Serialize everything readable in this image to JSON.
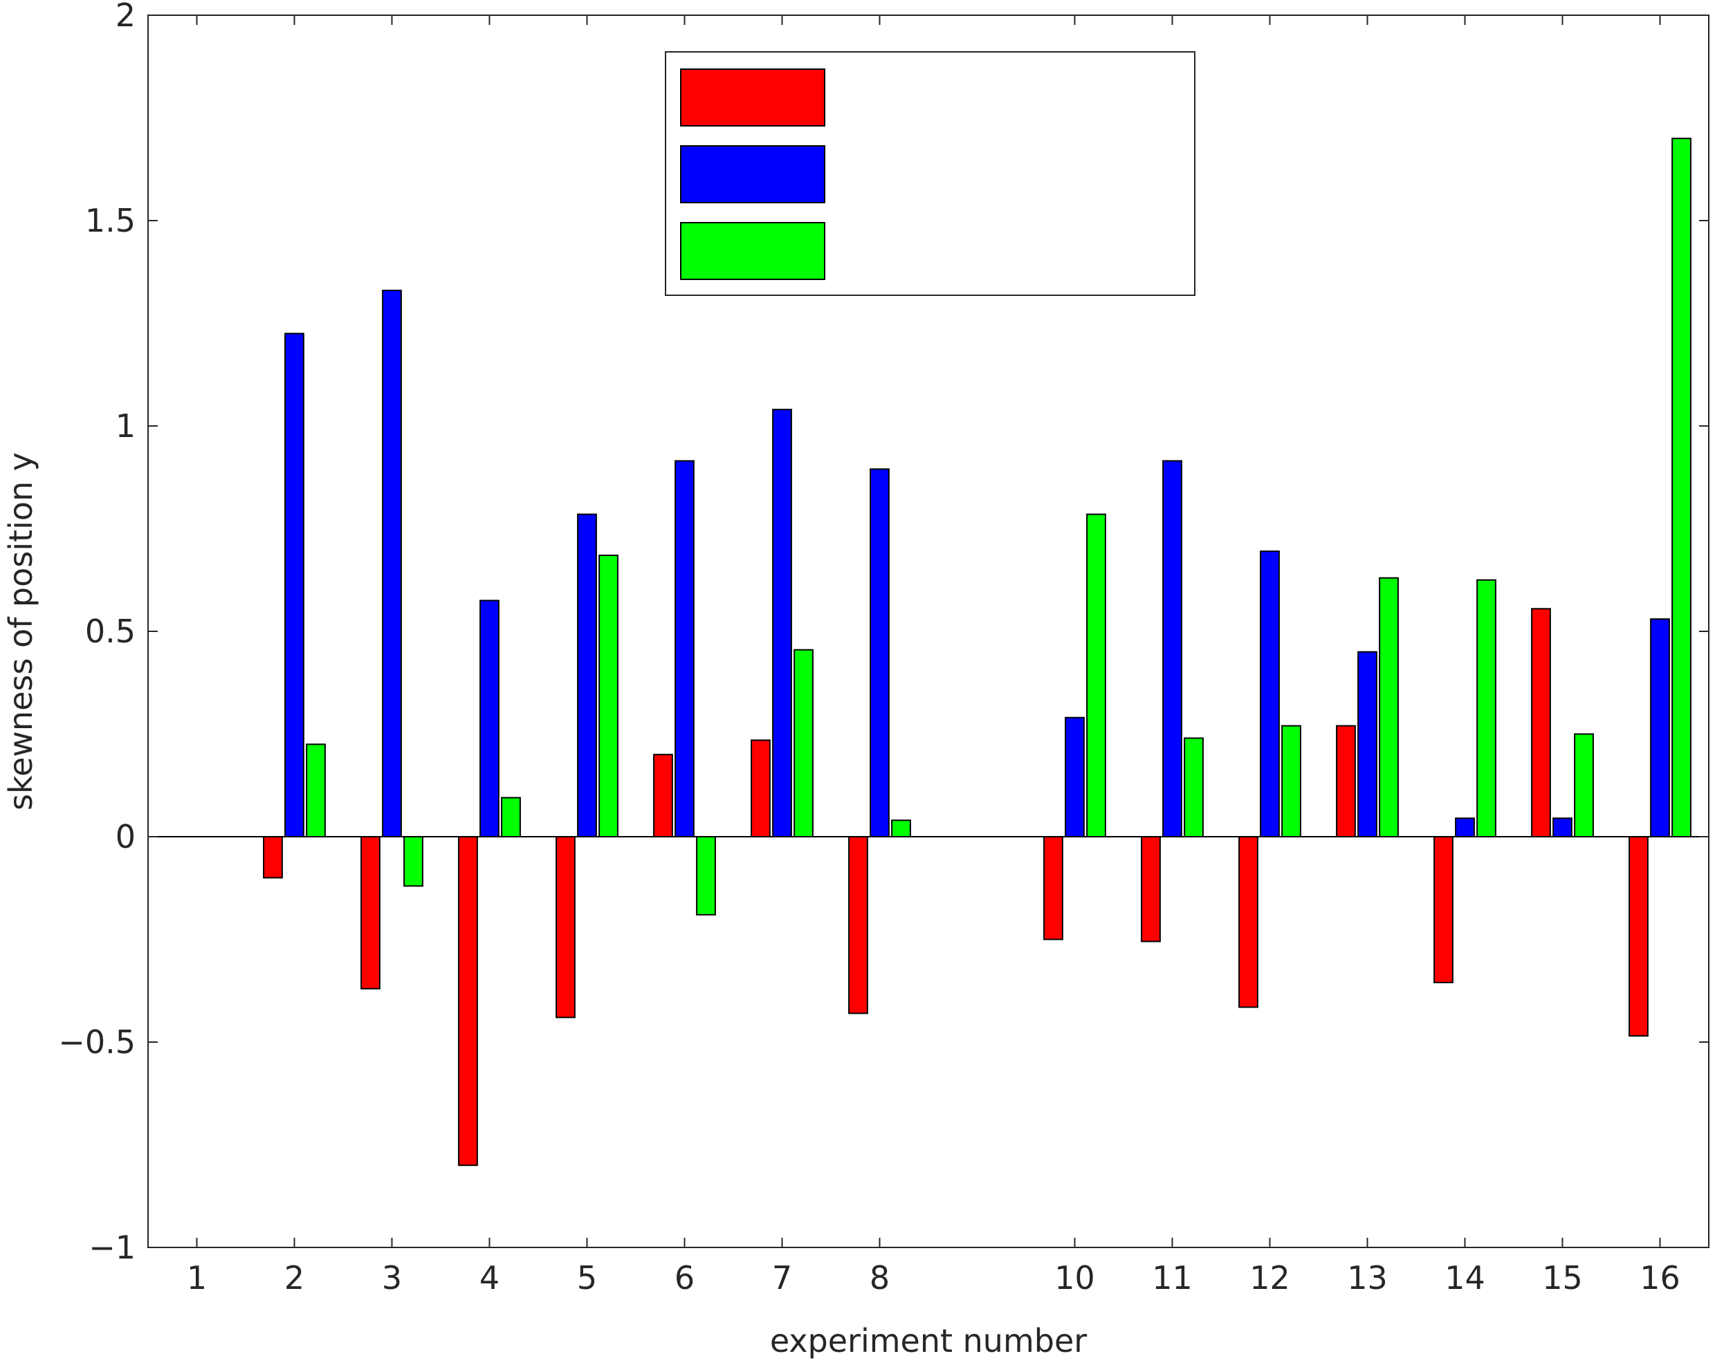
{
  "chart_data": {
    "type": "bar",
    "title": "",
    "xlabel": "experiment number",
    "ylabel": "skewness of position y",
    "ylim": [
      -1,
      2
    ],
    "yticks": [
      -1,
      -0.5,
      0,
      0.5,
      1,
      1.5,
      2
    ],
    "ytick_labels": [
      "−1",
      "−0.5",
      "0",
      "0.5",
      "1",
      "1.5",
      "2"
    ],
    "categories": [
      "1",
      "2",
      "3",
      "4",
      "5",
      "6",
      "7",
      "8",
      "10",
      "11",
      "12",
      "13",
      "14",
      "15",
      "16"
    ],
    "x": [
      1,
      2,
      3,
      4,
      5,
      6,
      7,
      8,
      10,
      11,
      12,
      13,
      14,
      15,
      16
    ],
    "xlim": [
      0.5,
      16.5
    ],
    "grid": false,
    "legend": "top-center",
    "series": [
      {
        "color": "#ff0000",
        "values": [
          0,
          -0.1,
          -0.37,
          -0.8,
          -0.44,
          0.2,
          0.235,
          -0.43,
          -0.25,
          -0.255,
          -0.415,
          0.27,
          -0.355,
          0.555,
          -0.485
        ]
      },
      {
        "color": "#0000ff",
        "values": [
          0,
          1.225,
          1.33,
          0.575,
          0.785,
          0.915,
          1.04,
          0.895,
          0.29,
          0.915,
          0.695,
          0.45,
          0.045,
          0.045,
          0.53
        ]
      },
      {
        "color": "#00ff00",
        "values": [
          0,
          0.225,
          -0.12,
          0.095,
          0.685,
          -0.19,
          0.455,
          0.04,
          0.785,
          0.24,
          0.27,
          0.63,
          0.625,
          0.25,
          1.7
        ]
      }
    ]
  }
}
